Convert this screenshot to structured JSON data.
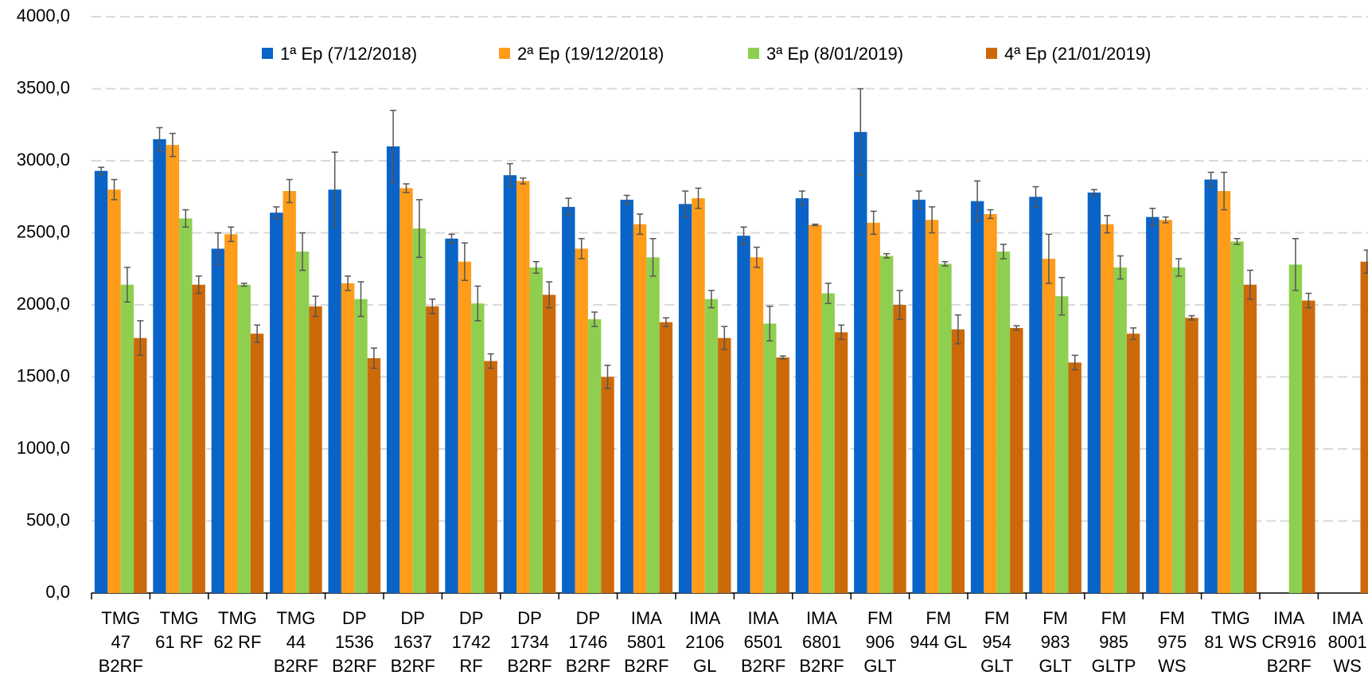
{
  "chart_data": {
    "type": "bar",
    "categories": [
      [
        "TMG",
        "47",
        "B2RF"
      ],
      [
        "TMG",
        "61 RF"
      ],
      [
        "TMG",
        "62 RF"
      ],
      [
        "TMG",
        "44",
        "B2RF"
      ],
      [
        "DP",
        "1536",
        "B2RF"
      ],
      [
        "DP",
        "1637",
        "B2RF"
      ],
      [
        "DP",
        "1742",
        "RF"
      ],
      [
        "DP",
        "1734",
        "B2RF"
      ],
      [
        "DP",
        "1746",
        "B2RF"
      ],
      [
        "IMA",
        "5801",
        "B2RF"
      ],
      [
        "IMA",
        "2106",
        "GL"
      ],
      [
        "IMA",
        "6501",
        "B2RF"
      ],
      [
        "IMA",
        "6801",
        "B2RF"
      ],
      [
        "FM",
        "906",
        "GLT"
      ],
      [
        "FM",
        "944 GL"
      ],
      [
        "FM",
        "954",
        "GLT"
      ],
      [
        "FM",
        "983",
        "GLT"
      ],
      [
        "FM",
        "985",
        "GLTP"
      ],
      [
        "FM",
        "975",
        "WS"
      ],
      [
        "TMG",
        "81 WS"
      ],
      [
        "IMA",
        "CR916",
        "B2RF"
      ],
      [
        "IMA",
        "8001",
        "WS"
      ]
    ],
    "series": [
      {
        "name": "1ª Ep (7/12/2018)",
        "color": "#0a64c8",
        "values": [
          2930,
          3150,
          2390,
          2640,
          2800,
          3100,
          2460,
          2900,
          2680,
          2730,
          2700,
          2480,
          2740,
          3200,
          2730,
          2720,
          2750,
          2780,
          2610,
          2870,
          null,
          null
        ],
        "errors": [
          25,
          80,
          110,
          40,
          260,
          250,
          30,
          80,
          60,
          30,
          90,
          60,
          50,
          300,
          60,
          140,
          70,
          20,
          60,
          50,
          null,
          null
        ]
      },
      {
        "name": "2ª Ep (19/12/2018)",
        "color": "#ff9c1a",
        "values": [
          2800,
          3110,
          2490,
          2790,
          2150,
          2810,
          2300,
          2860,
          2390,
          2560,
          2740,
          2330,
          2555,
          2570,
          2590,
          2630,
          2320,
          2560,
          2590,
          2790,
          null,
          null
        ],
        "errors": [
          70,
          80,
          50,
          80,
          50,
          30,
          130,
          20,
          70,
          70,
          70,
          70,
          5,
          80,
          90,
          30,
          170,
          60,
          20,
          130,
          null,
          null
        ]
      },
      {
        "name": "3ª Ep (8/01/2019)",
        "color": "#8fcf4f",
        "values": [
          2140,
          2600,
          2140,
          2370,
          2040,
          2530,
          2010,
          2260,
          1900,
          2330,
          2040,
          1870,
          2080,
          2340,
          2285,
          2370,
          2060,
          2260,
          2260,
          2440,
          2280,
          null
        ],
        "errors": [
          120,
          60,
          10,
          130,
          120,
          200,
          120,
          40,
          50,
          130,
          60,
          120,
          70,
          15,
          15,
          50,
          130,
          80,
          60,
          20,
          180,
          null
        ]
      },
      {
        "name": "4ª Ep (21/01/2019)",
        "color": "#cc6a0a",
        "values": [
          1770,
          2140,
          1800,
          1990,
          1630,
          1990,
          1610,
          2070,
          1500,
          1880,
          1770,
          1635,
          1810,
          2000,
          1830,
          1840,
          1600,
          1800,
          1910,
          2140,
          2030,
          2300
        ],
        "errors": [
          120,
          60,
          60,
          70,
          70,
          50,
          50,
          90,
          80,
          30,
          80,
          10,
          50,
          100,
          100,
          15,
          50,
          40,
          15,
          100,
          50,
          80
        ]
      }
    ],
    "ylim": [
      0,
      4000
    ],
    "yticks": [
      {
        "value": 0,
        "label": "0,0"
      },
      {
        "value": 500,
        "label": "500,0"
      },
      {
        "value": 1000,
        "label": "1000,0"
      },
      {
        "value": 1500,
        "label": "1500,0"
      },
      {
        "value": 2000,
        "label": "2000,0"
      },
      {
        "value": 2500,
        "label": "2500,0"
      },
      {
        "value": 3000,
        "label": "3000,0"
      },
      {
        "value": 3500,
        "label": "3500,0"
      },
      {
        "value": 4000,
        "label": "4000,0"
      }
    ],
    "grid": true,
    "legend": "top"
  }
}
